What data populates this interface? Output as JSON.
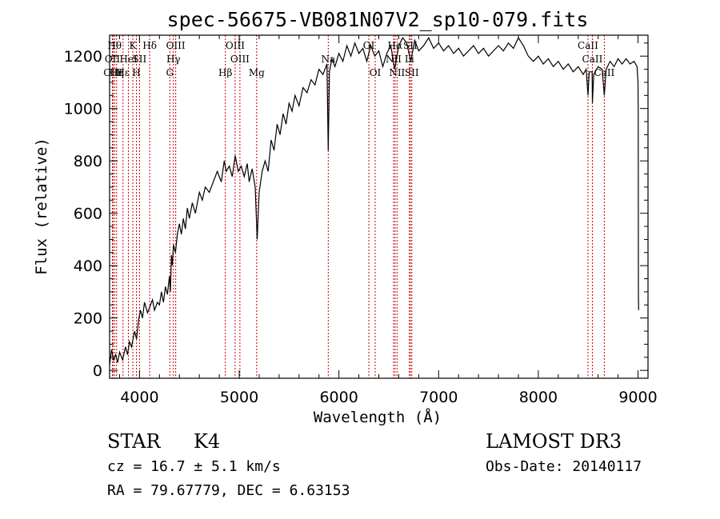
{
  "chart_data": {
    "type": "line",
    "title": "spec-56675-VB081N07V2_sp10-079.fits",
    "xlabel": "Wavelength (Å)",
    "ylabel": "Flux (relative)",
    "xlim": [
      3700,
      9100
    ],
    "ylim": [
      -30,
      1280
    ],
    "xticks": [
      4000,
      5000,
      6000,
      7000,
      8000,
      9000
    ],
    "yticks": [
      0,
      200,
      400,
      600,
      800,
      1000,
      1200
    ],
    "grid": false,
    "series": [
      {
        "name": "flux",
        "points": [
          [
            3700,
            20
          ],
          [
            3720,
            80
          ],
          [
            3740,
            40
          ],
          [
            3760,
            60
          ],
          [
            3780,
            30
          ],
          [
            3800,
            70
          ],
          [
            3830,
            40
          ],
          [
            3860,
            90
          ],
          [
            3880,
            60
          ],
          [
            3900,
            110
          ],
          [
            3920,
            90
          ],
          [
            3950,
            150
          ],
          [
            3970,
            120
          ],
          [
            3990,
            190
          ],
          [
            4010,
            230
          ],
          [
            4030,
            200
          ],
          [
            4050,
            260
          ],
          [
            4080,
            220
          ],
          [
            4100,
            240
          ],
          [
            4130,
            270
          ],
          [
            4150,
            230
          ],
          [
            4180,
            260
          ],
          [
            4200,
            250
          ],
          [
            4220,
            300
          ],
          [
            4240,
            260
          ],
          [
            4260,
            320
          ],
          [
            4280,
            290
          ],
          [
            4300,
            360
          ],
          [
            4310,
            300
          ],
          [
            4320,
            440
          ],
          [
            4330,
            400
          ],
          [
            4340,
            480
          ],
          [
            4360,
            450
          ],
          [
            4380,
            520
          ],
          [
            4400,
            560
          ],
          [
            4420,
            520
          ],
          [
            4440,
            580
          ],
          [
            4460,
            540
          ],
          [
            4480,
            620
          ],
          [
            4500,
            580
          ],
          [
            4530,
            640
          ],
          [
            4560,
            600
          ],
          [
            4600,
            680
          ],
          [
            4630,
            650
          ],
          [
            4660,
            700
          ],
          [
            4700,
            680
          ],
          [
            4740,
            720
          ],
          [
            4780,
            760
          ],
          [
            4820,
            720
          ],
          [
            4850,
            800
          ],
          [
            4870,
            760
          ],
          [
            4900,
            780
          ],
          [
            4930,
            740
          ],
          [
            4960,
            820
          ],
          [
            4990,
            760
          ],
          [
            5020,
            780
          ],
          [
            5050,
            740
          ],
          [
            5080,
            790
          ],
          [
            5100,
            720
          ],
          [
            5130,
            770
          ],
          [
            5160,
            700
          ],
          [
            5180,
            500
          ],
          [
            5200,
            680
          ],
          [
            5230,
            760
          ],
          [
            5260,
            800
          ],
          [
            5290,
            760
          ],
          [
            5320,
            880
          ],
          [
            5350,
            840
          ],
          [
            5380,
            940
          ],
          [
            5410,
            900
          ],
          [
            5440,
            980
          ],
          [
            5470,
            940
          ],
          [
            5500,
            1020
          ],
          [
            5530,
            990
          ],
          [
            5560,
            1050
          ],
          [
            5600,
            1010
          ],
          [
            5640,
            1080
          ],
          [
            5680,
            1060
          ],
          [
            5720,
            1110
          ],
          [
            5760,
            1090
          ],
          [
            5800,
            1150
          ],
          [
            5840,
            1130
          ],
          [
            5880,
            1170
          ],
          [
            5893,
            840
          ],
          [
            5905,
            1140
          ],
          [
            5930,
            1190
          ],
          [
            5960,
            1160
          ],
          [
            6000,
            1210
          ],
          [
            6040,
            1180
          ],
          [
            6080,
            1240
          ],
          [
            6120,
            1200
          ],
          [
            6160,
            1250
          ],
          [
            6200,
            1210
          ],
          [
            6240,
            1230
          ],
          [
            6280,
            1180
          ],
          [
            6320,
            1240
          ],
          [
            6360,
            1200
          ],
          [
            6400,
            1220
          ],
          [
            6440,
            1160
          ],
          [
            6480,
            1210
          ],
          [
            6520,
            1240
          ],
          [
            6560,
            1150
          ],
          [
            6600,
            1240
          ],
          [
            6640,
            1270
          ],
          [
            6680,
            1250
          ],
          [
            6720,
            1180
          ],
          [
            6760,
            1260
          ],
          [
            6800,
            1220
          ],
          [
            6850,
            1240
          ],
          [
            6900,
            1270
          ],
          [
            6950,
            1230
          ],
          [
            7000,
            1250
          ],
          [
            7050,
            1220
          ],
          [
            7100,
            1240
          ],
          [
            7150,
            1210
          ],
          [
            7200,
            1230
          ],
          [
            7250,
            1200
          ],
          [
            7300,
            1220
          ],
          [
            7350,
            1240
          ],
          [
            7400,
            1210
          ],
          [
            7450,
            1230
          ],
          [
            7500,
            1200
          ],
          [
            7550,
            1220
          ],
          [
            7600,
            1240
          ],
          [
            7650,
            1220
          ],
          [
            7700,
            1250
          ],
          [
            7750,
            1230
          ],
          [
            7800,
            1270
          ],
          [
            7850,
            1240
          ],
          [
            7900,
            1200
          ],
          [
            7950,
            1180
          ],
          [
            8000,
            1200
          ],
          [
            8050,
            1170
          ],
          [
            8100,
            1190
          ],
          [
            8150,
            1160
          ],
          [
            8200,
            1180
          ],
          [
            8250,
            1150
          ],
          [
            8300,
            1170
          ],
          [
            8350,
            1140
          ],
          [
            8400,
            1160
          ],
          [
            8450,
            1130
          ],
          [
            8480,
            1150
          ],
          [
            8498,
            1050
          ],
          [
            8510,
            1140
          ],
          [
            8540,
            1140
          ],
          [
            8542,
            1020
          ],
          [
            8556,
            1130
          ],
          [
            8600,
            1160
          ],
          [
            8640,
            1150
          ],
          [
            8662,
            1050
          ],
          [
            8680,
            1150
          ],
          [
            8720,
            1180
          ],
          [
            8760,
            1160
          ],
          [
            8800,
            1190
          ],
          [
            8840,
            1170
          ],
          [
            8880,
            1190
          ],
          [
            8920,
            1170
          ],
          [
            8960,
            1180
          ],
          [
            8990,
            1160
          ],
          [
            9000,
            1100
          ],
          [
            9002,
            980
          ],
          [
            9004,
            300
          ],
          [
            9006,
            230
          ]
        ]
      }
    ],
    "lines": [
      {
        "w": 3750,
        "label": "Hθ",
        "row": 1
      },
      {
        "w": 3728,
        "label": "OII",
        "row": 2
      },
      {
        "w": 3734,
        "label": "OIII",
        "row": 3
      },
      {
        "w": 3770,
        "label": "Hη",
        "row": 3
      },
      {
        "w": 3835,
        "label": "Hε",
        "row": 3
      },
      {
        "w": 3889,
        "label": "HeI",
        "row": 2
      },
      {
        "w": 3933,
        "label": "K",
        "row": 1
      },
      {
        "w": 3969,
        "label": "H",
        "row": 3
      },
      {
        "w": 4000,
        "label": "SII",
        "row": 2
      },
      {
        "w": 4102,
        "label": "Hδ",
        "row": 1
      },
      {
        "w": 4304,
        "label": "G",
        "row": 3
      },
      {
        "w": 4340,
        "label": "Hγ",
        "row": 2
      },
      {
        "w": 4363,
        "label": "OIII",
        "row": 1
      },
      {
        "w": 4861,
        "label": "Hβ",
        "row": 3
      },
      {
        "w": 4959,
        "label": "OIII",
        "row": 1
      },
      {
        "w": 5007,
        "label": "OIII",
        "row": 2
      },
      {
        "w": 5175,
        "label": "Mg",
        "row": 3
      },
      {
        "w": 5893,
        "label": "Na",
        "row": 2
      },
      {
        "w": 6300,
        "label": "OI",
        "row": 1
      },
      {
        "w": 6364,
        "label": "OI",
        "row": 3
      },
      {
        "w": 6548,
        "label": "NII",
        "row": 2
      },
      {
        "w": 6563,
        "label": "Hα",
        "row": 1
      },
      {
        "w": 6583,
        "label": "NII",
        "row": 3
      },
      {
        "w": 6707,
        "label": "Li",
        "row": 2
      },
      {
        "w": 6716,
        "label": "SII",
        "row": 1
      },
      {
        "w": 6731,
        "label": "SII",
        "row": 3
      },
      {
        "w": 8498,
        "label": "CaII",
        "row": 1
      },
      {
        "w": 8542,
        "label": "CaII",
        "row": 2
      },
      {
        "w": 8662,
        "label": "CaII",
        "row": 3
      }
    ]
  },
  "info": {
    "object_class": "STAR",
    "subclass": "K4",
    "survey": "LAMOST DR3",
    "redshift": "cz = 16.7 ± 5.1 km/s",
    "obs_date": "Obs-Date: 20140117",
    "coords": "RA =  79.67779, DEC =   6.63153"
  }
}
